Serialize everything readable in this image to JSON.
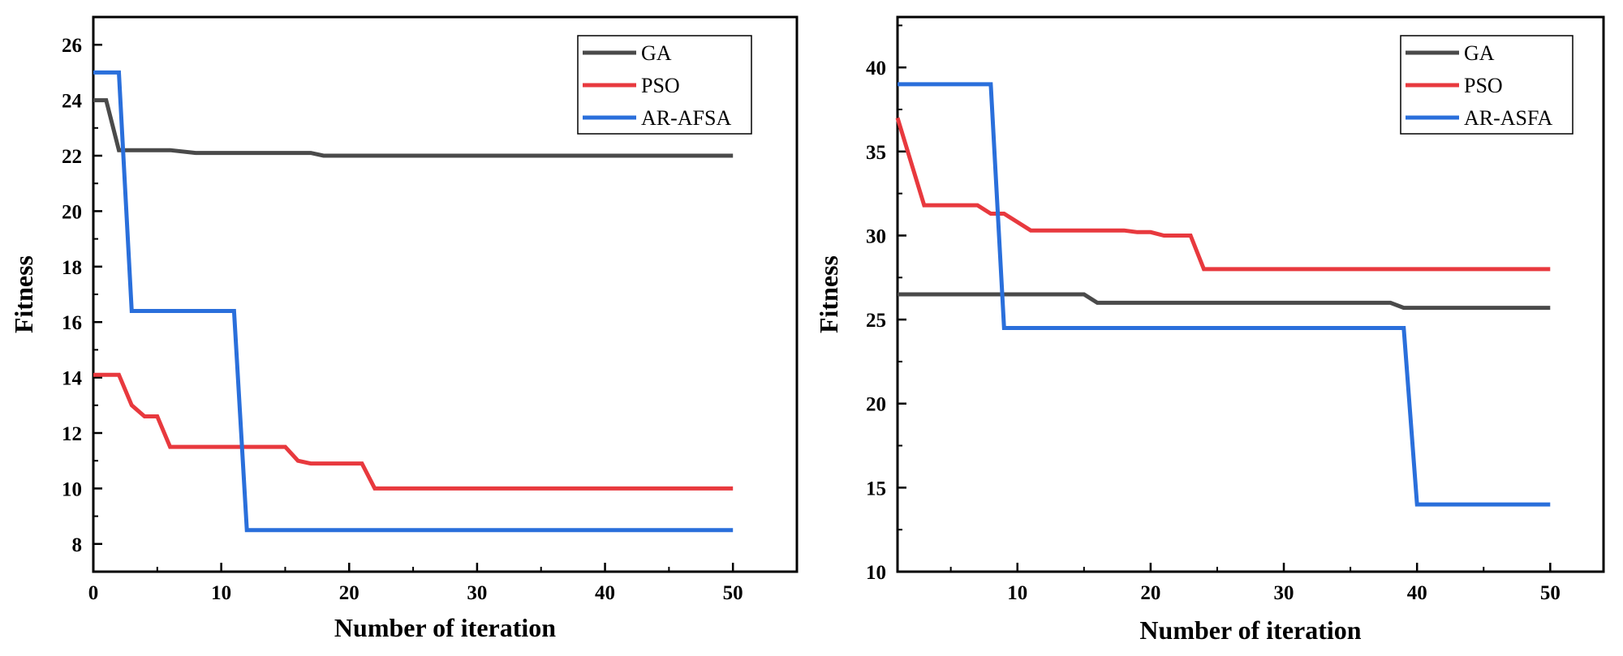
{
  "colors": {
    "GA": "#4a4a4a",
    "PSO": "#e8393e",
    "AR": "#2a6fdb",
    "axis": "#000000"
  },
  "chart_data": [
    {
      "type": "line",
      "xlabel": "Number of iteration",
      "ylabel": "Fitness",
      "xlim": [
        0,
        55
      ],
      "ylim": [
        7,
        27
      ],
      "xticks": [
        0,
        10,
        20,
        30,
        40,
        50
      ],
      "yticks": [
        8,
        10,
        12,
        14,
        16,
        18,
        20,
        22,
        24,
        26
      ],
      "legend_position": "top-right",
      "series": [
        {
          "name": "GA",
          "color_key": "GA",
          "x": [
            0,
            1,
            2,
            6,
            8,
            17,
            18,
            50
          ],
          "y": [
            24,
            24,
            22.2,
            22.2,
            22.1,
            22.1,
            22,
            22
          ]
        },
        {
          "name": "PSO",
          "color_key": "PSO",
          "x": [
            0,
            2,
            3,
            4,
            5,
            6,
            15,
            16,
            17,
            21,
            22,
            50
          ],
          "y": [
            14.1,
            14.1,
            13,
            12.6,
            12.6,
            11.5,
            11.5,
            11,
            10.9,
            10.9,
            10,
            10
          ]
        },
        {
          "name": "AR-AFSA",
          "color_key": "AR",
          "x": [
            0,
            2,
            3,
            11,
            12,
            50
          ],
          "y": [
            25,
            25,
            16.4,
            16.4,
            8.5,
            8.5
          ]
        }
      ]
    },
    {
      "type": "line",
      "xlabel": "Number of iteration",
      "ylabel": "Fitness",
      "xlim": [
        1,
        54
      ],
      "ylim": [
        10,
        43
      ],
      "xticks": [
        10,
        20,
        30,
        40,
        50
      ],
      "yticks": [
        10,
        15,
        20,
        25,
        30,
        35,
        40
      ],
      "legend_position": "top-right",
      "series": [
        {
          "name": "GA",
          "color_key": "GA",
          "x": [
            1,
            15,
            16,
            38,
            39,
            50
          ],
          "y": [
            26.5,
            26.5,
            26,
            26,
            25.7,
            25.7
          ]
        },
        {
          "name": "PSO",
          "color_key": "PSO",
          "x": [
            1,
            3,
            7,
            8,
            9,
            11,
            18,
            19,
            20,
            21,
            23,
            24,
            50
          ],
          "y": [
            37,
            31.8,
            31.8,
            31.3,
            31.3,
            30.3,
            30.3,
            30.2,
            30.2,
            30,
            30,
            28,
            28
          ]
        },
        {
          "name": "AR-ASFA",
          "color_key": "AR",
          "x": [
            1,
            8,
            9,
            39,
            40,
            50
          ],
          "y": [
            39,
            39,
            24.5,
            24.5,
            14,
            14
          ]
        }
      ]
    }
  ]
}
